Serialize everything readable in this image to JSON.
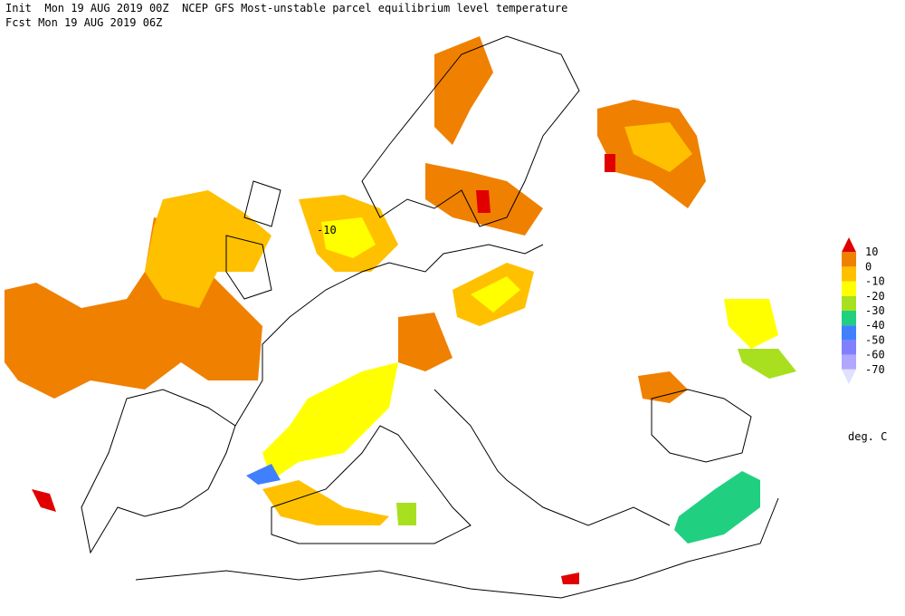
{
  "header": {
    "line1": "Init  Mon 19 AUG 2019 00Z  NCEP GFS Most-unstable parcel equilibrium level temperature",
    "line2": "Fcst Mon 19 AUG 2019 06Z"
  },
  "legend": {
    "labels": [
      "10",
      "0",
      "-10",
      "-20",
      "-30",
      "-40",
      "-50",
      "-60",
      "-70"
    ],
    "colors": [
      "#e00000",
      "#f08000",
      "#ffc000",
      "#ffff00",
      "#a8e020",
      "#20d080",
      "#4080ff",
      "#8080ff",
      "#b0a8ff",
      "#e0e0ff"
    ],
    "unit": "deg. C"
  },
  "map": {
    "contour_label": "-10"
  }
}
